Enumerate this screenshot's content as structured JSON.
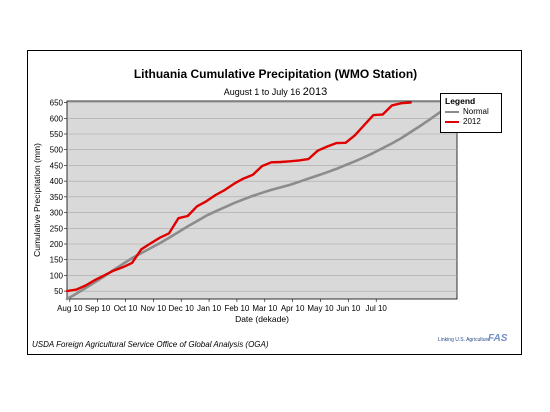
{
  "chart_data": {
    "type": "line",
    "title": "Lithuania Cumulative Precipitation (WMO Station)",
    "subtitle_prefix": "August 1 to July 16",
    "subtitle_year": "2013",
    "xlabel": "Date (dekade)",
    "ylabel": "Cumulative Precipitation (mm)",
    "ylim": [
      25,
      655
    ],
    "yticks": [
      50,
      100,
      150,
      200,
      250,
      300,
      350,
      400,
      450,
      500,
      550,
      600,
      650
    ],
    "x_tick_labels": [
      "Aug 10",
      "Sep 10",
      "Oct 10",
      "Nov 10",
      "Dec 10",
      "Jan 10",
      "Feb 10",
      "Mar 10",
      "Apr 10",
      "May 10",
      "Jun 10",
      "Jul 10"
    ],
    "grid": true,
    "legend_title": "Legend",
    "legend_position": "top-right",
    "series": [
      {
        "name": "Normal",
        "color": "#8c8c8c",
        "values": [
          25,
          42,
          60,
          78,
          97,
          117,
          136,
          155,
          171,
          187,
          203,
          220,
          238,
          256,
          273,
          290,
          304,
          317,
          330,
          342,
          353,
          363,
          372,
          380,
          388,
          398,
          408,
          418,
          428,
          439,
          451,
          463,
          476,
          490,
          505,
          520,
          537,
          556,
          575,
          595,
          616,
          636,
          655
        ]
      },
      {
        "name": "2012",
        "color": "#e00000",
        "values": [
          50,
          55,
          68,
          85,
          100,
          115,
          126,
          140,
          183,
          202,
          220,
          234,
          282,
          289,
          320,
          336,
          356,
          372,
          392,
          408,
          420,
          448,
          460,
          461,
          463,
          466,
          470,
          497,
          510,
          521,
          522,
          546,
          578,
          610,
          612,
          641,
          648,
          650
        ]
      }
    ]
  },
  "footer_text": "USDA Foreign Agricultural Service Office of Global Analysis (OGA)",
  "logo_text": "Linking U.S. Agriculture",
  "logo_mark": "FAS"
}
